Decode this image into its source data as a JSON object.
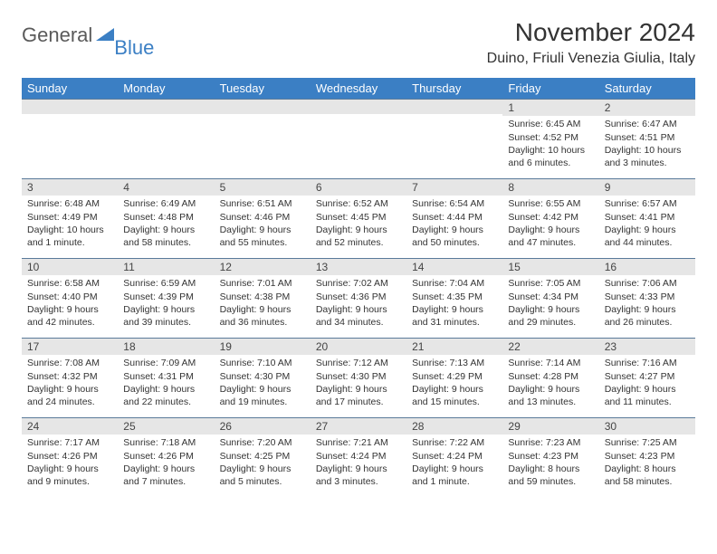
{
  "logo": {
    "general": "General",
    "blue": "Blue"
  },
  "header": {
    "title": "November 2024",
    "location": "Duino, Friuli Venezia Giulia, Italy"
  },
  "colors": {
    "header_bg": "#3b7fc4",
    "header_text": "#ffffff",
    "daynum_bg": "#e6e6e6",
    "row_border": "#5a7a9a",
    "body_text": "#333333",
    "logo_gray": "#5a5a5a",
    "logo_blue": "#3b7fc4"
  },
  "typography": {
    "title_fontsize": 28,
    "subtitle_fontsize": 16,
    "dayheader_fontsize": 13,
    "daynum_fontsize": 12,
    "cell_fontsize": 10.5
  },
  "day_headers": [
    "Sunday",
    "Monday",
    "Tuesday",
    "Wednesday",
    "Thursday",
    "Friday",
    "Saturday"
  ],
  "weeks": [
    [
      {
        "day": "",
        "sunrise": "",
        "sunset": "",
        "daylight": ""
      },
      {
        "day": "",
        "sunrise": "",
        "sunset": "",
        "daylight": ""
      },
      {
        "day": "",
        "sunrise": "",
        "sunset": "",
        "daylight": ""
      },
      {
        "day": "",
        "sunrise": "",
        "sunset": "",
        "daylight": ""
      },
      {
        "day": "",
        "sunrise": "",
        "sunset": "",
        "daylight": ""
      },
      {
        "day": "1",
        "sunrise": "Sunrise: 6:45 AM",
        "sunset": "Sunset: 4:52 PM",
        "daylight": "Daylight: 10 hours and 6 minutes."
      },
      {
        "day": "2",
        "sunrise": "Sunrise: 6:47 AM",
        "sunset": "Sunset: 4:51 PM",
        "daylight": "Daylight: 10 hours and 3 minutes."
      }
    ],
    [
      {
        "day": "3",
        "sunrise": "Sunrise: 6:48 AM",
        "sunset": "Sunset: 4:49 PM",
        "daylight": "Daylight: 10 hours and 1 minute."
      },
      {
        "day": "4",
        "sunrise": "Sunrise: 6:49 AM",
        "sunset": "Sunset: 4:48 PM",
        "daylight": "Daylight: 9 hours and 58 minutes."
      },
      {
        "day": "5",
        "sunrise": "Sunrise: 6:51 AM",
        "sunset": "Sunset: 4:46 PM",
        "daylight": "Daylight: 9 hours and 55 minutes."
      },
      {
        "day": "6",
        "sunrise": "Sunrise: 6:52 AM",
        "sunset": "Sunset: 4:45 PM",
        "daylight": "Daylight: 9 hours and 52 minutes."
      },
      {
        "day": "7",
        "sunrise": "Sunrise: 6:54 AM",
        "sunset": "Sunset: 4:44 PM",
        "daylight": "Daylight: 9 hours and 50 minutes."
      },
      {
        "day": "8",
        "sunrise": "Sunrise: 6:55 AM",
        "sunset": "Sunset: 4:42 PM",
        "daylight": "Daylight: 9 hours and 47 minutes."
      },
      {
        "day": "9",
        "sunrise": "Sunrise: 6:57 AM",
        "sunset": "Sunset: 4:41 PM",
        "daylight": "Daylight: 9 hours and 44 minutes."
      }
    ],
    [
      {
        "day": "10",
        "sunrise": "Sunrise: 6:58 AM",
        "sunset": "Sunset: 4:40 PM",
        "daylight": "Daylight: 9 hours and 42 minutes."
      },
      {
        "day": "11",
        "sunrise": "Sunrise: 6:59 AM",
        "sunset": "Sunset: 4:39 PM",
        "daylight": "Daylight: 9 hours and 39 minutes."
      },
      {
        "day": "12",
        "sunrise": "Sunrise: 7:01 AM",
        "sunset": "Sunset: 4:38 PM",
        "daylight": "Daylight: 9 hours and 36 minutes."
      },
      {
        "day": "13",
        "sunrise": "Sunrise: 7:02 AM",
        "sunset": "Sunset: 4:36 PM",
        "daylight": "Daylight: 9 hours and 34 minutes."
      },
      {
        "day": "14",
        "sunrise": "Sunrise: 7:04 AM",
        "sunset": "Sunset: 4:35 PM",
        "daylight": "Daylight: 9 hours and 31 minutes."
      },
      {
        "day": "15",
        "sunrise": "Sunrise: 7:05 AM",
        "sunset": "Sunset: 4:34 PM",
        "daylight": "Daylight: 9 hours and 29 minutes."
      },
      {
        "day": "16",
        "sunrise": "Sunrise: 7:06 AM",
        "sunset": "Sunset: 4:33 PM",
        "daylight": "Daylight: 9 hours and 26 minutes."
      }
    ],
    [
      {
        "day": "17",
        "sunrise": "Sunrise: 7:08 AM",
        "sunset": "Sunset: 4:32 PM",
        "daylight": "Daylight: 9 hours and 24 minutes."
      },
      {
        "day": "18",
        "sunrise": "Sunrise: 7:09 AM",
        "sunset": "Sunset: 4:31 PM",
        "daylight": "Daylight: 9 hours and 22 minutes."
      },
      {
        "day": "19",
        "sunrise": "Sunrise: 7:10 AM",
        "sunset": "Sunset: 4:30 PM",
        "daylight": "Daylight: 9 hours and 19 minutes."
      },
      {
        "day": "20",
        "sunrise": "Sunrise: 7:12 AM",
        "sunset": "Sunset: 4:30 PM",
        "daylight": "Daylight: 9 hours and 17 minutes."
      },
      {
        "day": "21",
        "sunrise": "Sunrise: 7:13 AM",
        "sunset": "Sunset: 4:29 PM",
        "daylight": "Daylight: 9 hours and 15 minutes."
      },
      {
        "day": "22",
        "sunrise": "Sunrise: 7:14 AM",
        "sunset": "Sunset: 4:28 PM",
        "daylight": "Daylight: 9 hours and 13 minutes."
      },
      {
        "day": "23",
        "sunrise": "Sunrise: 7:16 AM",
        "sunset": "Sunset: 4:27 PM",
        "daylight": "Daylight: 9 hours and 11 minutes."
      }
    ],
    [
      {
        "day": "24",
        "sunrise": "Sunrise: 7:17 AM",
        "sunset": "Sunset: 4:26 PM",
        "daylight": "Daylight: 9 hours and 9 minutes."
      },
      {
        "day": "25",
        "sunrise": "Sunrise: 7:18 AM",
        "sunset": "Sunset: 4:26 PM",
        "daylight": "Daylight: 9 hours and 7 minutes."
      },
      {
        "day": "26",
        "sunrise": "Sunrise: 7:20 AM",
        "sunset": "Sunset: 4:25 PM",
        "daylight": "Daylight: 9 hours and 5 minutes."
      },
      {
        "day": "27",
        "sunrise": "Sunrise: 7:21 AM",
        "sunset": "Sunset: 4:24 PM",
        "daylight": "Daylight: 9 hours and 3 minutes."
      },
      {
        "day": "28",
        "sunrise": "Sunrise: 7:22 AM",
        "sunset": "Sunset: 4:24 PM",
        "daylight": "Daylight: 9 hours and 1 minute."
      },
      {
        "day": "29",
        "sunrise": "Sunrise: 7:23 AM",
        "sunset": "Sunset: 4:23 PM",
        "daylight": "Daylight: 8 hours and 59 minutes."
      },
      {
        "day": "30",
        "sunrise": "Sunrise: 7:25 AM",
        "sunset": "Sunset: 4:23 PM",
        "daylight": "Daylight: 8 hours and 58 minutes."
      }
    ]
  ]
}
